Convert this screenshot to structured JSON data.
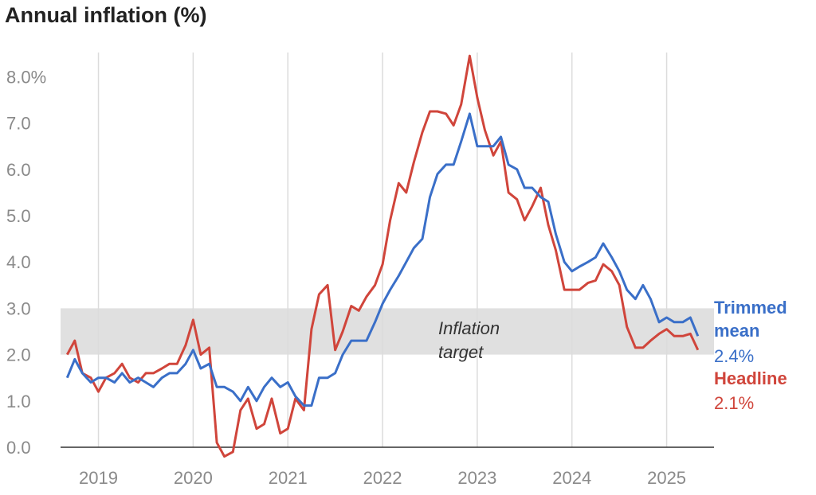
{
  "chart_data": {
    "type": "line",
    "title": "Annual inflation (%)",
    "xlabel": "",
    "ylabel": "",
    "xlim": [
      2018.6,
      2025.5
    ],
    "ylim": [
      0,
      8.5
    ],
    "y_ticks": [
      0,
      1,
      2,
      3,
      4,
      5,
      6,
      7,
      8
    ],
    "y_tick_labels": [
      "0.0",
      "1.0",
      "2.0",
      "3.0",
      "4.0",
      "5.0",
      "6.0",
      "7.0",
      "8.0%"
    ],
    "x_ticks": [
      2019,
      2020,
      2021,
      2022,
      2023,
      2024,
      2025
    ],
    "x_tick_labels": [
      "2019",
      "2020",
      "2021",
      "2022",
      "2023",
      "2024",
      "2025"
    ],
    "grid": "vertical",
    "target_band": {
      "low": 2.0,
      "high": 3.0,
      "label_line1": "Inflation",
      "label_line2": "target"
    },
    "series": [
      {
        "name": "Headline",
        "color": "#d0453b",
        "end_label": "Headline",
        "end_value_label": "2.1%",
        "x": [
          2018.67,
          2018.75,
          2018.83,
          2018.92,
          2019.0,
          2019.08,
          2019.17,
          2019.25,
          2019.33,
          2019.42,
          2019.5,
          2019.58,
          2019.67,
          2019.75,
          2019.83,
          2019.92,
          2020.0,
          2020.08,
          2020.17,
          2020.25,
          2020.33,
          2020.42,
          2020.5,
          2020.58,
          2020.67,
          2020.75,
          2020.83,
          2020.92,
          2021.0,
          2021.08,
          2021.17,
          2021.25,
          2021.33,
          2021.42,
          2021.5,
          2021.58,
          2021.67,
          2021.75,
          2021.83,
          2021.92,
          2022.0,
          2022.08,
          2022.17,
          2022.25,
          2022.33,
          2022.42,
          2022.5,
          2022.58,
          2022.67,
          2022.75,
          2022.83,
          2022.92,
          2023.0,
          2023.08,
          2023.17,
          2023.25,
          2023.33,
          2023.42,
          2023.5,
          2023.58,
          2023.67,
          2023.75,
          2023.83,
          2023.92,
          2024.0,
          2024.08,
          2024.17,
          2024.25,
          2024.33,
          2024.42,
          2024.5,
          2024.58,
          2024.67,
          2024.75,
          2024.83,
          2024.92,
          2025.0,
          2025.08,
          2025.17,
          2025.25,
          2025.33
        ],
        "values": [
          2.0,
          2.3,
          1.6,
          1.5,
          1.2,
          1.5,
          1.6,
          1.8,
          1.5,
          1.4,
          1.6,
          1.6,
          1.7,
          1.8,
          1.8,
          2.2,
          2.75,
          2.0,
          2.15,
          0.1,
          -0.2,
          -0.1,
          0.8,
          1.05,
          0.4,
          0.5,
          1.05,
          0.3,
          0.4,
          1.05,
          0.8,
          2.55,
          3.3,
          3.5,
          2.1,
          2.5,
          3.05,
          2.95,
          3.25,
          3.5,
          3.95,
          4.9,
          5.7,
          5.5,
          6.15,
          6.8,
          7.25,
          7.25,
          7.2,
          6.95,
          7.4,
          8.45,
          7.55,
          6.85,
          6.3,
          6.6,
          5.5,
          5.35,
          4.9,
          5.2,
          5.6,
          4.8,
          4.25,
          3.4,
          3.4,
          3.4,
          3.55,
          3.6,
          3.95,
          3.8,
          3.5,
          2.6,
          2.15,
          2.15,
          2.3,
          2.45,
          2.55,
          2.4,
          2.4,
          2.45,
          2.1
        ]
      },
      {
        "name": "Trimmed mean",
        "color": "#3a6fc8",
        "end_label_line1": "Trimmed",
        "end_label_line2": "mean",
        "end_value_label": "2.4%",
        "x": [
          2018.67,
          2018.75,
          2018.83,
          2018.92,
          2019.0,
          2019.08,
          2019.17,
          2019.25,
          2019.33,
          2019.42,
          2019.5,
          2019.58,
          2019.67,
          2019.75,
          2019.83,
          2019.92,
          2020.0,
          2020.08,
          2020.17,
          2020.25,
          2020.33,
          2020.42,
          2020.5,
          2020.58,
          2020.67,
          2020.75,
          2020.83,
          2020.92,
          2021.0,
          2021.08,
          2021.17,
          2021.25,
          2021.33,
          2021.42,
          2021.5,
          2021.58,
          2021.67,
          2021.75,
          2021.83,
          2021.92,
          2022.0,
          2022.08,
          2022.17,
          2022.25,
          2022.33,
          2022.42,
          2022.5,
          2022.58,
          2022.67,
          2022.75,
          2022.83,
          2022.92,
          2023.0,
          2023.08,
          2023.17,
          2023.25,
          2023.33,
          2023.42,
          2023.5,
          2023.58,
          2023.67,
          2023.75,
          2023.83,
          2023.92,
          2024.0,
          2024.08,
          2024.17,
          2024.25,
          2024.33,
          2024.42,
          2024.5,
          2024.58,
          2024.67,
          2024.75,
          2024.83,
          2024.92,
          2025.0,
          2025.08,
          2025.17,
          2025.25,
          2025.33
        ],
        "values": [
          1.5,
          1.9,
          1.6,
          1.4,
          1.5,
          1.5,
          1.4,
          1.6,
          1.4,
          1.5,
          1.4,
          1.3,
          1.5,
          1.6,
          1.6,
          1.8,
          2.1,
          1.7,
          1.8,
          1.3,
          1.3,
          1.2,
          1.0,
          1.3,
          1.0,
          1.3,
          1.5,
          1.3,
          1.4,
          1.1,
          0.9,
          0.9,
          1.5,
          1.5,
          1.6,
          2.0,
          2.3,
          2.3,
          2.3,
          2.7,
          3.1,
          3.4,
          3.7,
          4.0,
          4.3,
          4.5,
          5.4,
          5.9,
          6.1,
          6.1,
          6.6,
          7.2,
          6.5,
          6.5,
          6.5,
          6.7,
          6.1,
          6.0,
          5.6,
          5.6,
          5.4,
          5.3,
          4.6,
          4.0,
          3.8,
          3.9,
          4.0,
          4.1,
          4.4,
          4.1,
          3.8,
          3.4,
          3.2,
          3.5,
          3.2,
          2.7,
          2.8,
          2.7,
          2.7,
          2.8,
          2.4
        ]
      }
    ]
  }
}
